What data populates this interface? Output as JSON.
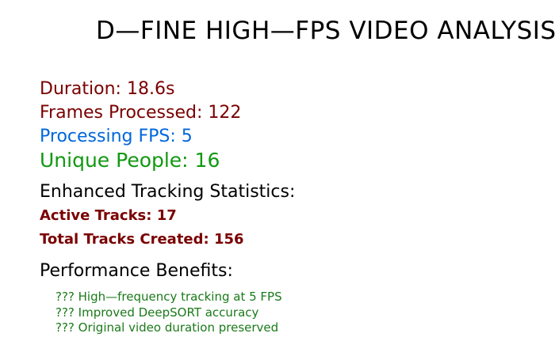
{
  "title": "D—FINE HIGH—FPS VIDEO ANALYSIS",
  "stats": {
    "duration": "Duration: 18.6s",
    "frames_processed": "Frames Processed: 122",
    "processing_fps": "Processing FPS: 5",
    "unique_people": "Unique People: 16"
  },
  "tracking": {
    "heading": "Enhanced Tracking Statistics:",
    "active_tracks": "Active Tracks: 17",
    "total_tracks_created": "Total Tracks Created: 156"
  },
  "performance": {
    "heading": "Performance Benefits:",
    "benefits": [
      "??? High—frequency tracking at 5 FPS",
      "??? Improved DeepSORT accuracy",
      "??? Original video duration preserved"
    ]
  },
  "colors": {
    "title": "#000000",
    "dark_red": "#7a0000",
    "blue": "#0066dd",
    "green": "#119911",
    "benefit_green": "#1a7a1a"
  }
}
